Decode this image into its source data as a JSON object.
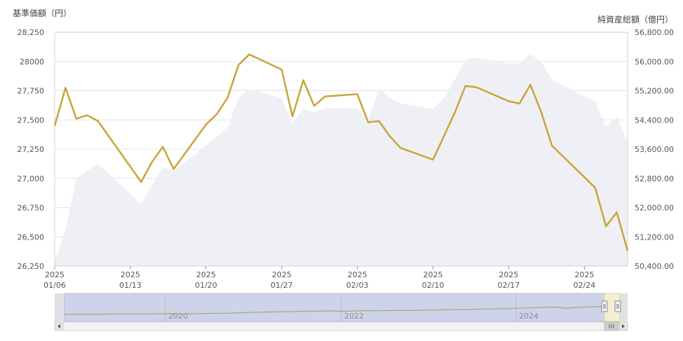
{
  "chart_data": {
    "type": "line",
    "left_axis_title": "基準価額（円）",
    "right_axis_title": "純資産総額（億円）",
    "left_ylim": [
      26250,
      28250
    ],
    "left_ticks": [
      "28,250",
      "28000",
      "27,750",
      "27,500",
      "27,250",
      "27,000",
      "26,750",
      "26,500",
      "26,250"
    ],
    "right_ylim": [
      50400,
      56800
    ],
    "right_ticks": [
      "56,800.00",
      "56,000.00",
      "55,200.00",
      "54,400.00",
      "53,600.00",
      "52,800.00",
      "52,000.00",
      "51,200.00",
      "50,400.00"
    ],
    "x_range": [
      "2025-01-06",
      "2025-02-28"
    ],
    "x_ticks": [
      {
        "date": "2025-01-06",
        "year": "2025",
        "day": "01/06"
      },
      {
        "date": "2025-01-13",
        "year": "2025",
        "day": "01/13"
      },
      {
        "date": "2025-01-20",
        "year": "2025",
        "day": "01/20"
      },
      {
        "date": "2025-01-27",
        "year": "2025",
        "day": "01/27"
      },
      {
        "date": "2025-02-03",
        "year": "2025",
        "day": "02/03"
      },
      {
        "date": "2025-02-10",
        "year": "2025",
        "day": "02/10"
      },
      {
        "date": "2025-02-17",
        "year": "2025",
        "day": "02/17"
      },
      {
        "date": "2025-02-24",
        "year": "2025",
        "day": "02/24"
      }
    ],
    "grid": true,
    "series": [
      {
        "axis": "left",
        "kind": "line",
        "color": "#c9a43a",
        "points": [
          [
            "2025-01-06",
            27450
          ],
          [
            "2025-01-07",
            27775
          ],
          [
            "2025-01-08",
            27510
          ],
          [
            "2025-01-09",
            27540
          ],
          [
            "2025-01-10",
            27490
          ],
          [
            "2025-01-14",
            26970
          ],
          [
            "2025-01-15",
            27140
          ],
          [
            "2025-01-16",
            27270
          ],
          [
            "2025-01-17",
            27080
          ],
          [
            "2025-01-20",
            27460
          ],
          [
            "2025-01-21",
            27550
          ],
          [
            "2025-01-22",
            27690
          ],
          [
            "2025-01-23",
            27970
          ],
          [
            "2025-01-24",
            28060
          ],
          [
            "2025-01-27",
            27930
          ],
          [
            "2025-01-28",
            27530
          ],
          [
            "2025-01-29",
            27840
          ],
          [
            "2025-01-30",
            27620
          ],
          [
            "2025-01-31",
            27700
          ],
          [
            "2025-02-03",
            27720
          ],
          [
            "2025-02-04",
            27480
          ],
          [
            "2025-02-05",
            27490
          ],
          [
            "2025-02-06",
            27360
          ],
          [
            "2025-02-07",
            27260
          ],
          [
            "2025-02-10",
            27160
          ],
          [
            "2025-02-12",
            27560
          ],
          [
            "2025-02-13",
            27790
          ],
          [
            "2025-02-14",
            27780
          ],
          [
            "2025-02-17",
            27660
          ],
          [
            "2025-02-18",
            27640
          ],
          [
            "2025-02-19",
            27800
          ],
          [
            "2025-02-20",
            27570
          ],
          [
            "2025-02-21",
            27280
          ],
          [
            "2025-02-25",
            26920
          ],
          [
            "2025-02-26",
            26590
          ],
          [
            "2025-02-27",
            26710
          ],
          [
            "2025-02-28",
            26380
          ]
        ]
      },
      {
        "axis": "right",
        "kind": "area",
        "color": "#eef0f5",
        "points": [
          [
            "2025-01-06",
            50500
          ],
          [
            "2025-01-07",
            51400
          ],
          [
            "2025-01-08",
            52800
          ],
          [
            "2025-01-09",
            53000
          ],
          [
            "2025-01-10",
            53200
          ],
          [
            "2025-01-14",
            52100
          ],
          [
            "2025-01-15",
            52600
          ],
          [
            "2025-01-16",
            53100
          ],
          [
            "2025-01-17",
            53000
          ],
          [
            "2025-01-20",
            53700
          ],
          [
            "2025-01-21",
            53950
          ],
          [
            "2025-01-22",
            54200
          ],
          [
            "2025-01-23",
            55000
          ],
          [
            "2025-01-24",
            55250
          ],
          [
            "2025-01-27",
            55000
          ],
          [
            "2025-01-28",
            54300
          ],
          [
            "2025-01-29",
            54700
          ],
          [
            "2025-01-30",
            54600
          ],
          [
            "2025-01-31",
            54720
          ],
          [
            "2025-02-03",
            54720
          ],
          [
            "2025-02-04",
            54400
          ],
          [
            "2025-02-05",
            55250
          ],
          [
            "2025-02-06",
            55000
          ],
          [
            "2025-02-07",
            54850
          ],
          [
            "2025-02-10",
            54700
          ],
          [
            "2025-02-11",
            55000
          ],
          [
            "2025-02-12",
            55500
          ],
          [
            "2025-02-13",
            56050
          ],
          [
            "2025-02-14",
            56100
          ],
          [
            "2025-02-17",
            55950
          ],
          [
            "2025-02-18",
            55950
          ],
          [
            "2025-02-19",
            56200
          ],
          [
            "2025-02-20",
            56000
          ],
          [
            "2025-02-21",
            55500
          ],
          [
            "2025-02-25",
            54900
          ],
          [
            "2025-02-26",
            54200
          ],
          [
            "2025-02-27",
            54500
          ],
          [
            "2025-02-28",
            53800
          ]
        ]
      }
    ]
  },
  "navigator": {
    "year_labels": [
      "2020",
      "2022",
      "2024"
    ],
    "history": [
      [
        0.0,
        0.2
      ],
      [
        0.03,
        0.22
      ],
      [
        0.06,
        0.2
      ],
      [
        0.1,
        0.25
      ],
      [
        0.14,
        0.23
      ],
      [
        0.18,
        0.26
      ],
      [
        0.22,
        0.24
      ],
      [
        0.26,
        0.29
      ],
      [
        0.3,
        0.31
      ],
      [
        0.34,
        0.37
      ],
      [
        0.38,
        0.42
      ],
      [
        0.42,
        0.46
      ],
      [
        0.46,
        0.5
      ],
      [
        0.5,
        0.52
      ],
      [
        0.52,
        0.47
      ],
      [
        0.54,
        0.53
      ],
      [
        0.58,
        0.54
      ],
      [
        0.62,
        0.56
      ],
      [
        0.66,
        0.58
      ],
      [
        0.7,
        0.62
      ],
      [
        0.74,
        0.65
      ],
      [
        0.78,
        0.7
      ],
      [
        0.82,
        0.74
      ],
      [
        0.86,
        0.8
      ],
      [
        0.89,
        0.86
      ],
      [
        0.91,
        0.88
      ],
      [
        0.93,
        0.78
      ],
      [
        0.95,
        0.84
      ],
      [
        0.97,
        0.9
      ],
      [
        1.0,
        0.94
      ]
    ]
  }
}
